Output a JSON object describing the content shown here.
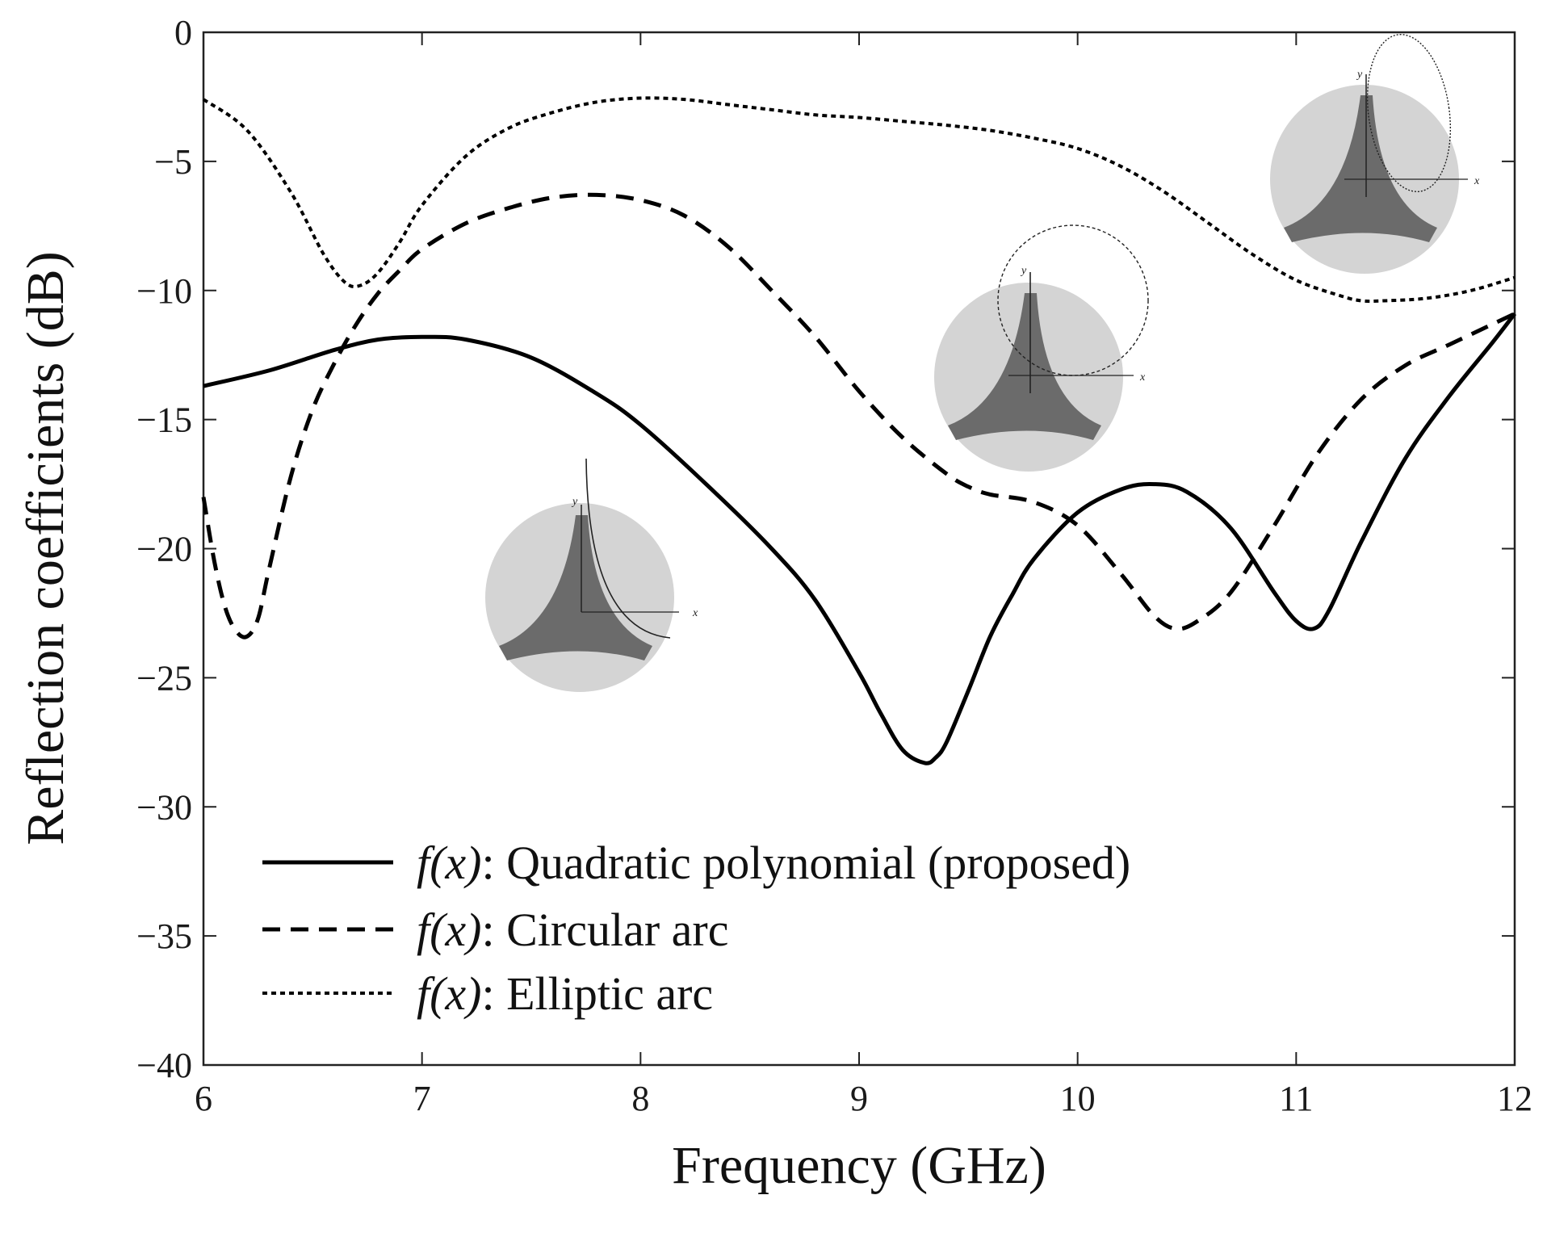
{
  "chart_data": {
    "type": "line",
    "title": "",
    "xlabel": "Frequency (GHz)",
    "ylabel": "Reflection coefficients (dB)",
    "xlim": [
      6,
      12
    ],
    "ylim": [
      -40,
      0
    ],
    "xticks": [
      6,
      7,
      8,
      9,
      10,
      11,
      12
    ],
    "yticks": [
      0,
      -5,
      -10,
      -15,
      -20,
      -25,
      -30,
      -35,
      -40
    ],
    "xtick_labels": [
      "6",
      "7",
      "8",
      "9",
      "10",
      "11",
      "12"
    ],
    "ytick_labels": [
      "0",
      "−5",
      "−10",
      "−15",
      "−20",
      "−25",
      "−30",
      "−35",
      "−40"
    ],
    "grid": false,
    "legend_position": "bottom-left",
    "series": [
      {
        "name": "Quadratic polynomial (proposed)",
        "legend_prefix": "f(x)",
        "legend_suffix": ": Quadratic polynomial (proposed)",
        "style": "solid",
        "x": [
          6.0,
          6.3,
          6.6,
          6.8,
          7.0,
          7.2,
          7.5,
          7.8,
          8.0,
          8.3,
          8.6,
          8.8,
          9.0,
          9.1,
          9.2,
          9.3,
          9.35,
          9.4,
          9.5,
          9.6,
          9.7,
          9.8,
          10.0,
          10.2,
          10.35,
          10.5,
          10.7,
          10.9,
          11.0,
          11.08,
          11.15,
          11.3,
          11.5,
          11.7,
          11.9,
          12.0
        ],
        "y": [
          -13.7,
          -13.1,
          -12.3,
          -11.9,
          -11.8,
          -11.9,
          -12.6,
          -14.0,
          -15.2,
          -17.5,
          -20.0,
          -22.0,
          -24.8,
          -26.4,
          -27.8,
          -28.3,
          -28.1,
          -27.5,
          -25.5,
          -23.4,
          -21.8,
          -20.4,
          -18.6,
          -17.7,
          -17.5,
          -17.8,
          -19.2,
          -21.7,
          -22.8,
          -23.1,
          -22.4,
          -19.7,
          -16.5,
          -14.1,
          -12.0,
          -10.9
        ]
      },
      {
        "name": "Circular arc",
        "legend_prefix": "f(x)",
        "legend_suffix": ": Circular arc",
        "style": "dashed",
        "x": [
          6.0,
          6.05,
          6.1,
          6.15,
          6.2,
          6.25,
          6.3,
          6.4,
          6.5,
          6.6,
          6.7,
          6.8,
          6.9,
          7.0,
          7.2,
          7.4,
          7.6,
          7.8,
          8.0,
          8.2,
          8.4,
          8.6,
          8.8,
          9.0,
          9.2,
          9.4,
          9.5,
          9.6,
          9.8,
          10.0,
          10.2,
          10.35,
          10.45,
          10.55,
          10.7,
          10.9,
          11.1,
          11.3,
          11.5,
          11.7,
          11.9,
          12.0
        ],
        "y": [
          -18.0,
          -20.5,
          -22.3,
          -23.2,
          -23.4,
          -22.7,
          -20.8,
          -17.2,
          -14.6,
          -12.8,
          -11.3,
          -10.1,
          -9.2,
          -8.4,
          -7.4,
          -6.8,
          -6.4,
          -6.3,
          -6.5,
          -7.1,
          -8.3,
          -10.0,
          -11.8,
          -13.9,
          -15.7,
          -17.1,
          -17.6,
          -17.9,
          -18.2,
          -19.1,
          -21.0,
          -22.6,
          -23.1,
          -22.8,
          -21.7,
          -19.1,
          -16.3,
          -14.2,
          -12.9,
          -12.1,
          -11.3,
          -10.9
        ]
      },
      {
        "name": "Elliptic arc",
        "legend_prefix": "f(x)",
        "legend_suffix": ": Elliptic arc",
        "style": "dotted",
        "x": [
          6.0,
          6.2,
          6.4,
          6.55,
          6.65,
          6.72,
          6.8,
          6.9,
          7.0,
          7.2,
          7.4,
          7.6,
          7.8,
          8.0,
          8.2,
          8.4,
          8.6,
          8.8,
          9.0,
          9.2,
          9.4,
          9.6,
          9.8,
          10.0,
          10.2,
          10.4,
          10.6,
          10.8,
          11.0,
          11.2,
          11.3,
          11.4,
          11.6,
          11.8,
          12.0
        ],
        "y": [
          -2.6,
          -3.8,
          -6.2,
          -8.6,
          -9.7,
          -9.8,
          -9.3,
          -8.1,
          -6.7,
          -4.8,
          -3.7,
          -3.1,
          -2.7,
          -2.55,
          -2.6,
          -2.8,
          -3.0,
          -3.2,
          -3.3,
          -3.45,
          -3.6,
          -3.8,
          -4.1,
          -4.5,
          -5.2,
          -6.2,
          -7.4,
          -8.6,
          -9.6,
          -10.2,
          -10.4,
          -10.4,
          -10.3,
          -10.0,
          -9.5
        ]
      }
    ]
  },
  "insets": [
    {
      "name": "Quadratic polynomial",
      "axis_x": "x",
      "axis_y": "y"
    },
    {
      "name": "Circular arc",
      "axis_x": "x",
      "axis_y": "y"
    },
    {
      "name": "Elliptic arc",
      "axis_x": "x",
      "axis_y": "y"
    }
  ]
}
